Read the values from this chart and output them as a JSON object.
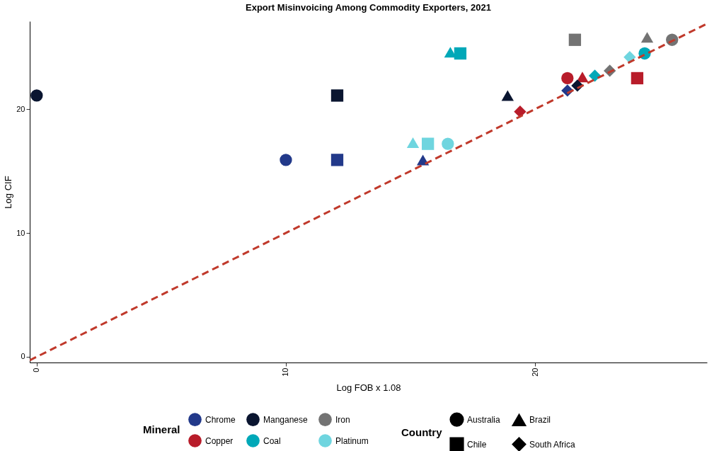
{
  "chart_data": {
    "type": "scatter",
    "title": "Export Misinvoicing Among Commodity Exporters, 2021",
    "xlabel": "Log FOB x 1.08",
    "ylabel": "Log CIF",
    "xlim": [
      -0.28,
      26.9
    ],
    "ylim": [
      -0.46,
      27.1
    ],
    "xticks": [
      0,
      10,
      20
    ],
    "yticks": [
      0,
      10,
      20
    ],
    "grid": false,
    "legend": "bottom",
    "legend_title": "Mineral",
    "annotations": [
      "Country",
      "Australia",
      "Chile",
      "Brazil",
      "South Africa"
    ],
    "series": [
      {
        "name": "Chrome",
        "color": "#22398a",
        "x": [
          10,
          12.06,
          15.5,
          21.3
        ],
        "values": [
          15.9,
          15.9,
          15.9,
          21.5
        ],
        "marker": [
          "circle",
          "square",
          "triangle",
          "diamond"
        ]
      },
      {
        "name": "Copper",
        "color": "#b81c2a",
        "x": [
          21.3,
          24.1,
          21.9,
          19.4
        ],
        "values": [
          22.5,
          22.5,
          22.6,
          19.8
        ],
        "marker": [
          "circle",
          "square",
          "triangle",
          "diamond"
        ]
      },
      {
        "name": "Manganese",
        "color": "#0a1530",
        "x": [
          0,
          12.06,
          18.9,
          21.7
        ],
        "values": [
          21.1,
          21.1,
          21.1,
          21.9
        ],
        "marker": [
          "circle",
          "square",
          "triangle",
          "diamond"
        ]
      },
      {
        "name": "Coal",
        "color": "#00a8b8",
        "x": [
          24.4,
          17.0,
          16.6,
          22.4
        ],
        "values": [
          24.5,
          24.5,
          24.6,
          22.7
        ],
        "marker": [
          "circle",
          "square",
          "triangle",
          "diamond"
        ]
      },
      {
        "name": "Iron",
        "color": "#737373",
        "x": [
          25.5,
          21.6,
          24.5,
          23.0
        ],
        "values": [
          25.6,
          25.6,
          25.8,
          23.1
        ],
        "marker": [
          "circle",
          "square",
          "triangle",
          "diamond"
        ]
      },
      {
        "name": "Platinum",
        "color": "#6fd5df",
        "x": [
          16.5,
          15.7,
          15.1,
          23.8
        ],
        "values": [
          17.2,
          17.2,
          17.3,
          24.2
        ],
        "marker": [
          "circle",
          "square",
          "triangle",
          "diamond"
        ]
      },
      {
        "type": "line",
        "color": "#c0392b",
        "line_style": "dashed",
        "x": [
          -0.28,
          26.9
        ],
        "values": [
          -0.28,
          26.9
        ]
      }
    ]
  }
}
